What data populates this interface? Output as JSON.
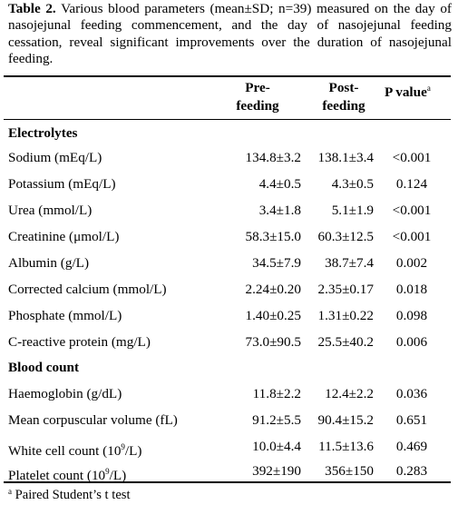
{
  "caption": {
    "label": "Table 2.",
    "text": "Various blood parameters (mean±SD; n=39) measured on the day of nasojejunal feeding commencement, and the day of nasojejunal feeding cessation, reveal significant improvements over the duration of nasojejunal feeding."
  },
  "headers": {
    "pre_line1": "Pre-",
    "pre_line2": "feeding",
    "post_line1": "Post-",
    "post_line2": "feeding",
    "pvalue": "P value",
    "pvalue_mark": "a"
  },
  "sections": [
    {
      "title": "Electrolytes",
      "rows": [
        {
          "label": "Sodium (mEq/L)",
          "pre": "134.8±3.2",
          "post": "138.1±3.4",
          "p": "<0.001"
        },
        {
          "label": "Potassium (mEq/L)",
          "pre": "4.4±0.5",
          "post": "4.3±0.5",
          "p": "0.124"
        },
        {
          "label": "Urea (mmol/L)",
          "pre": "3.4±1.8",
          "post": "5.1±1.9",
          "p": "<0.001"
        },
        {
          "label": "Creatinine (μmol/L)",
          "pre": "58.3±15.0",
          "post": "60.3±12.5",
          "p": "<0.001"
        },
        {
          "label": "Albumin (g/L)",
          "pre": "34.5±7.9",
          "post": "38.7±7.4",
          "p": "0.002"
        },
        {
          "label": "Corrected calcium (mmol/L)",
          "pre": "2.24±0.20",
          "post": "2.35±0.17",
          "p": "0.018"
        },
        {
          "label": "Phosphate (mmol/L)",
          "pre": "1.40±0.25",
          "post": "1.31±0.22",
          "p": "0.098"
        },
        {
          "label": "C-reactive protein (mg/L)",
          "pre": "73.0±90.5",
          "post": "25.5±40.2",
          "p": "0.006"
        }
      ]
    },
    {
      "title": "Blood count",
      "rows": [
        {
          "label": "Haemoglobin (g/dL)",
          "pre": "11.8±2.2",
          "post": "12.4±2.2",
          "p": "0.036"
        },
        {
          "label": "Mean corpuscular volume (fL)",
          "pre": "91.2±5.5",
          "post": "90.4±15.2",
          "p": "0.651"
        },
        {
          "label_main": "White cell count (10",
          "label_sup": "9",
          "label_tail": "/L)",
          "pre": "10.0±4.4",
          "post": "11.5±13.6",
          "p": "0.469"
        },
        {
          "label_main": "Platelet count (10",
          "label_sup": "9",
          "label_tail": "/L)",
          "pre": "392±190",
          "post": "356±150",
          "p": "0.283"
        }
      ]
    }
  ],
  "footnote": {
    "mark": "a",
    "text": " Paired Student’s t test"
  }
}
